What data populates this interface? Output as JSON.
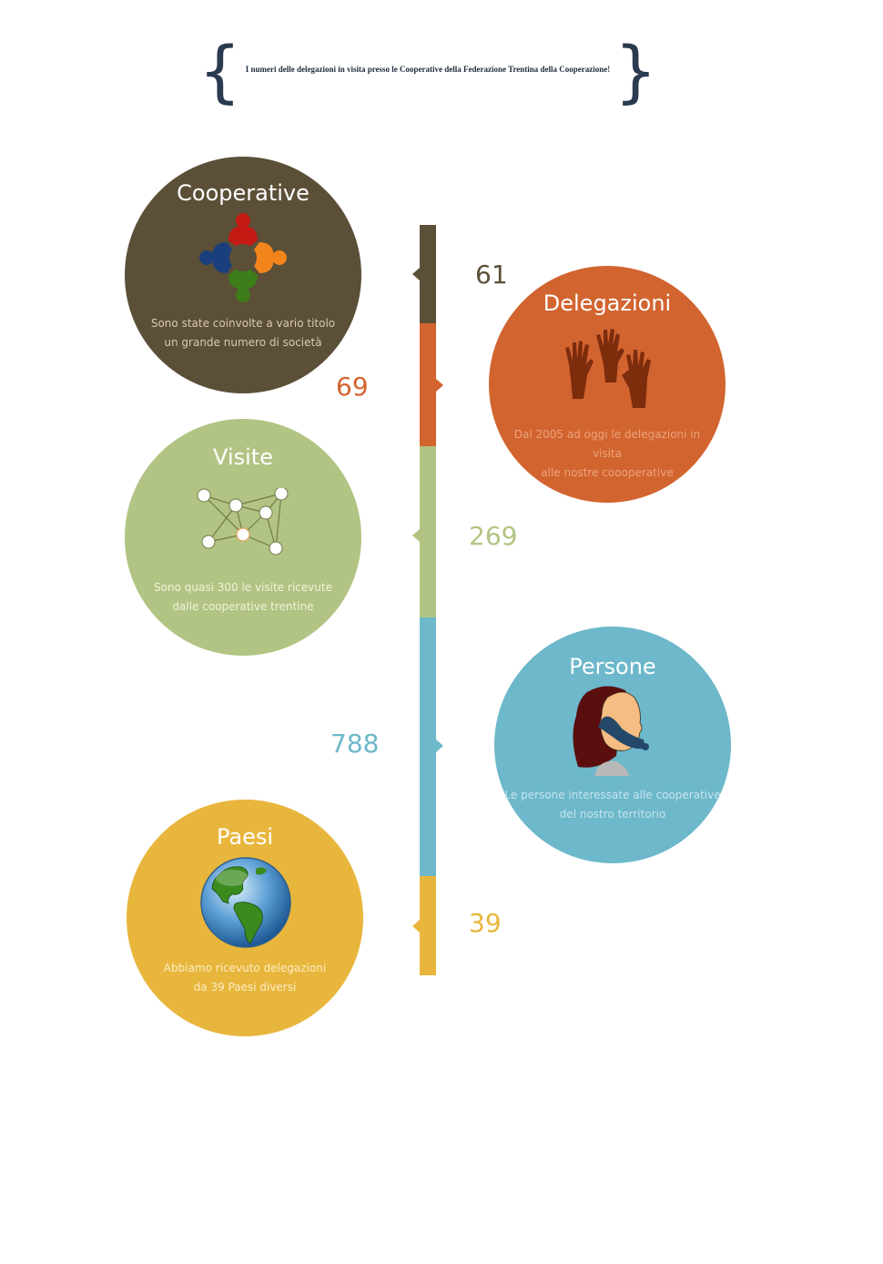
{
  "header": {
    "title": "I numeri delle delegazioni in visita presso le Cooperative della Federazione Trentina della Cooperazione!"
  },
  "items": {
    "cooperative": {
      "title": "Cooperative",
      "desc_line1": "Sono state coinvolte a vario titolo",
      "desc_line2": "un grande numero di società",
      "value": "69",
      "color": "#5b4f37"
    },
    "delegazioni": {
      "title": "Delegazioni",
      "desc_line1": "Dal 2005 ad oggi le delegazioni in visita",
      "desc_line2": "alle nostre coooperative",
      "value": "61",
      "color": "#d26430"
    },
    "visite": {
      "title": "Visite",
      "desc_line1": "Sono quasi 300 le visite ricevute",
      "desc_line2": "dalle cooperative trentine",
      "value": "269",
      "color": "#b2c483"
    },
    "persone": {
      "title": "Persone",
      "desc_line1": "Le persone interessate alle cooperative",
      "desc_line2": "del nostro territorio",
      "value": "788",
      "color": "#6db8cb"
    },
    "paesi": {
      "title": "Paesi",
      "desc_line1": "Abbiamo ricevuto delegazioni",
      "desc_line2": "da 39 Paesi diversi",
      "value": "39",
      "color": "#e8b63c"
    }
  }
}
